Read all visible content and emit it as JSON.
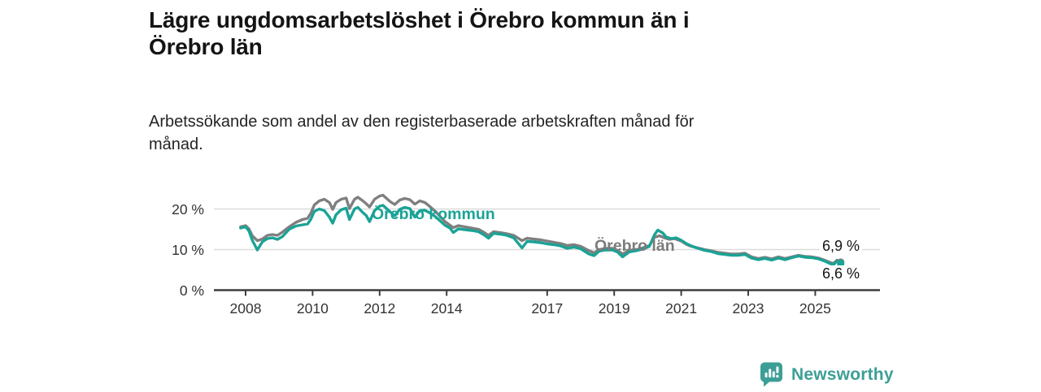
{
  "title": {
    "line1": "Lägre ungdomsarbetslöshet i Örebro kommun än i",
    "line2": "Örebro län"
  },
  "subtitle": {
    "line1": "Arbetssökande som andel av den registerbaserade arbetskraften månad för",
    "line2": "månad."
  },
  "chart_data": {
    "type": "line",
    "title": "Lägre ungdomsarbetslöshet i Örebro kommun än i Örebro län",
    "subtitle": "Arbetssökande som andel av den registerbaserade arbetskraften månad för månad.",
    "xlabel": "",
    "ylabel": "",
    "x_unit": "year (monthly data)",
    "y_unit": "percent",
    "xlim": [
      2007.7,
      2026.1
    ],
    "ylim": [
      0,
      25
    ],
    "grid": "horizontal",
    "legend_position": "inline-labels",
    "x_ticks": [
      2008,
      2010,
      2012,
      2014,
      2017,
      2019,
      2021,
      2023,
      2025
    ],
    "y_ticks": [
      {
        "value": 20,
        "label": "20 %"
      },
      {
        "value": 10,
        "label": "10 %"
      },
      {
        "value": 0,
        "label": "0 %"
      }
    ],
    "colors": {
      "kommun_teal": "#1aa396",
      "lan_gray": "#7f7f7f",
      "axis": "#3d3d3d",
      "gridline": "#dcdcdc",
      "tick_text": "#333333"
    },
    "series": [
      {
        "name": "Örebro län",
        "color": "#7f7f7f",
        "end_label": "6,9 %",
        "points": [
          [
            2007.85,
            15.6
          ],
          [
            2008.0,
            15.9
          ],
          [
            2008.1,
            15.1
          ],
          [
            2008.2,
            13.4
          ],
          [
            2008.35,
            12.2
          ],
          [
            2008.5,
            12.6
          ],
          [
            2008.65,
            13.5
          ],
          [
            2008.8,
            13.7
          ],
          [
            2008.95,
            13.5
          ],
          [
            2009.1,
            14.3
          ],
          [
            2009.3,
            15.6
          ],
          [
            2009.5,
            16.7
          ],
          [
            2009.7,
            17.4
          ],
          [
            2009.85,
            17.7
          ],
          [
            2009.95,
            19.0
          ],
          [
            2010.05,
            21.0
          ],
          [
            2010.2,
            22.0
          ],
          [
            2010.35,
            22.4
          ],
          [
            2010.5,
            21.6
          ],
          [
            2010.6,
            19.9
          ],
          [
            2010.7,
            21.6
          ],
          [
            2010.85,
            22.4
          ],
          [
            2011.0,
            22.7
          ],
          [
            2011.1,
            20.1
          ],
          [
            2011.25,
            22.4
          ],
          [
            2011.35,
            22.9
          ],
          [
            2011.5,
            22.0
          ],
          [
            2011.6,
            21.3
          ],
          [
            2011.7,
            20.5
          ],
          [
            2011.85,
            22.4
          ],
          [
            2012.0,
            23.2
          ],
          [
            2012.1,
            23.4
          ],
          [
            2012.3,
            21.9
          ],
          [
            2012.45,
            21.1
          ],
          [
            2012.6,
            22.2
          ],
          [
            2012.75,
            22.6
          ],
          [
            2012.9,
            22.3
          ],
          [
            2013.05,
            21.2
          ],
          [
            2013.2,
            22.0
          ],
          [
            2013.35,
            21.6
          ],
          [
            2013.5,
            20.6
          ],
          [
            2013.65,
            19.5
          ],
          [
            2013.8,
            18.2
          ],
          [
            2013.95,
            16.9
          ],
          [
            2014.1,
            16.0
          ],
          [
            2014.2,
            15.4
          ],
          [
            2014.35,
            15.9
          ],
          [
            2014.55,
            15.6
          ],
          [
            2014.75,
            15.3
          ],
          [
            2014.95,
            15.0
          ],
          [
            2015.1,
            14.3
          ],
          [
            2015.25,
            13.5
          ],
          [
            2015.4,
            14.4
          ],
          [
            2015.6,
            14.2
          ],
          [
            2015.8,
            13.9
          ],
          [
            2016.0,
            13.5
          ],
          [
            2016.25,
            12.2
          ],
          [
            2016.4,
            12.8
          ],
          [
            2016.6,
            12.6
          ],
          [
            2016.8,
            12.4
          ],
          [
            2017.0,
            12.1
          ],
          [
            2017.2,
            11.8
          ],
          [
            2017.4,
            11.5
          ],
          [
            2017.6,
            11.0
          ],
          [
            2017.8,
            11.2
          ],
          [
            2018.0,
            10.8
          ],
          [
            2018.25,
            9.7
          ],
          [
            2018.4,
            9.2
          ],
          [
            2018.55,
            10.0
          ],
          [
            2018.75,
            10.3
          ],
          [
            2018.95,
            10.3
          ],
          [
            2019.1,
            9.8
          ],
          [
            2019.25,
            8.9
          ],
          [
            2019.45,
            9.8
          ],
          [
            2019.65,
            10.0
          ],
          [
            2019.85,
            10.4
          ],
          [
            2020.05,
            11.0
          ],
          [
            2020.2,
            13.0
          ],
          [
            2020.35,
            13.4
          ],
          [
            2020.5,
            12.9
          ],
          [
            2020.65,
            12.5
          ],
          [
            2020.8,
            12.7
          ],
          [
            2021.0,
            12.1
          ],
          [
            2021.15,
            11.3
          ],
          [
            2021.3,
            10.8
          ],
          [
            2021.5,
            10.4
          ],
          [
            2021.7,
            10.0
          ],
          [
            2021.9,
            9.7
          ],
          [
            2022.1,
            9.3
          ],
          [
            2022.3,
            9.1
          ],
          [
            2022.5,
            8.9
          ],
          [
            2022.7,
            8.9
          ],
          [
            2022.9,
            9.1
          ],
          [
            2023.1,
            8.2
          ],
          [
            2023.3,
            7.8
          ],
          [
            2023.5,
            8.1
          ],
          [
            2023.7,
            7.7
          ],
          [
            2023.9,
            8.2
          ],
          [
            2024.1,
            7.8
          ],
          [
            2024.3,
            8.2
          ],
          [
            2024.5,
            8.6
          ],
          [
            2024.7,
            8.3
          ],
          [
            2024.9,
            8.2
          ],
          [
            2025.1,
            7.9
          ],
          [
            2025.3,
            7.3
          ],
          [
            2025.45,
            6.8
          ],
          [
            2025.55,
            6.6
          ],
          [
            2025.65,
            7.4
          ],
          [
            2025.76,
            6.9
          ]
        ]
      },
      {
        "name": "Örebro kommun",
        "color": "#1aa396",
        "end_label": "6,6 %",
        "points": [
          [
            2007.85,
            15.3
          ],
          [
            2008.0,
            15.6
          ],
          [
            2008.1,
            14.6
          ],
          [
            2008.2,
            12.3
          ],
          [
            2008.35,
            9.9
          ],
          [
            2008.5,
            11.9
          ],
          [
            2008.65,
            12.7
          ],
          [
            2008.8,
            12.9
          ],
          [
            2008.95,
            12.5
          ],
          [
            2009.1,
            13.2
          ],
          [
            2009.3,
            15.0
          ],
          [
            2009.5,
            15.8
          ],
          [
            2009.7,
            16.1
          ],
          [
            2009.85,
            16.3
          ],
          [
            2009.95,
            17.5
          ],
          [
            2010.05,
            19.4
          ],
          [
            2010.2,
            20.0
          ],
          [
            2010.35,
            19.6
          ],
          [
            2010.5,
            18.0
          ],
          [
            2010.6,
            16.5
          ],
          [
            2010.7,
            18.6
          ],
          [
            2010.85,
            19.8
          ],
          [
            2011.0,
            20.2
          ],
          [
            2011.1,
            17.4
          ],
          [
            2011.25,
            20.0
          ],
          [
            2011.35,
            20.4
          ],
          [
            2011.5,
            19.1
          ],
          [
            2011.6,
            18.4
          ],
          [
            2011.7,
            16.9
          ],
          [
            2011.85,
            19.6
          ],
          [
            2012.0,
            20.7
          ],
          [
            2012.1,
            20.9
          ],
          [
            2012.3,
            19.4
          ],
          [
            2012.45,
            18.3
          ],
          [
            2012.6,
            19.9
          ],
          [
            2012.75,
            20.4
          ],
          [
            2012.9,
            20.1
          ],
          [
            2013.05,
            18.0
          ],
          [
            2013.2,
            19.6
          ],
          [
            2013.35,
            19.7
          ],
          [
            2013.5,
            19.0
          ],
          [
            2013.65,
            18.2
          ],
          [
            2013.8,
            17.1
          ],
          [
            2013.95,
            16.0
          ],
          [
            2014.1,
            15.3
          ],
          [
            2014.2,
            14.2
          ],
          [
            2014.35,
            15.1
          ],
          [
            2014.55,
            14.9
          ],
          [
            2014.75,
            14.7
          ],
          [
            2014.95,
            14.4
          ],
          [
            2015.1,
            13.7
          ],
          [
            2015.25,
            12.8
          ],
          [
            2015.4,
            14.0
          ],
          [
            2015.6,
            13.8
          ],
          [
            2015.8,
            13.5
          ],
          [
            2016.0,
            12.9
          ],
          [
            2016.25,
            10.4
          ],
          [
            2016.4,
            12.0
          ],
          [
            2016.6,
            11.9
          ],
          [
            2016.8,
            11.7
          ],
          [
            2017.0,
            11.4
          ],
          [
            2017.2,
            11.2
          ],
          [
            2017.4,
            10.9
          ],
          [
            2017.6,
            10.3
          ],
          [
            2017.8,
            10.6
          ],
          [
            2018.0,
            10.2
          ],
          [
            2018.25,
            8.9
          ],
          [
            2018.4,
            8.5
          ],
          [
            2018.55,
            9.6
          ],
          [
            2018.75,
            9.9
          ],
          [
            2018.95,
            9.9
          ],
          [
            2019.1,
            9.4
          ],
          [
            2019.25,
            8.2
          ],
          [
            2019.45,
            9.4
          ],
          [
            2019.65,
            9.7
          ],
          [
            2019.85,
            10.1
          ],
          [
            2020.05,
            10.8
          ],
          [
            2020.2,
            13.6
          ],
          [
            2020.3,
            14.8
          ],
          [
            2020.45,
            14.1
          ],
          [
            2020.55,
            13.1
          ],
          [
            2020.7,
            12.7
          ],
          [
            2020.85,
            12.9
          ],
          [
            2021.0,
            12.3
          ],
          [
            2021.15,
            11.5
          ],
          [
            2021.3,
            10.9
          ],
          [
            2021.5,
            10.3
          ],
          [
            2021.7,
            9.8
          ],
          [
            2021.9,
            9.5
          ],
          [
            2022.1,
            9.0
          ],
          [
            2022.3,
            8.8
          ],
          [
            2022.5,
            8.6
          ],
          [
            2022.7,
            8.6
          ],
          [
            2022.9,
            8.8
          ],
          [
            2023.1,
            7.9
          ],
          [
            2023.3,
            7.5
          ],
          [
            2023.5,
            7.8
          ],
          [
            2023.7,
            7.4
          ],
          [
            2023.9,
            7.9
          ],
          [
            2024.1,
            7.5
          ],
          [
            2024.3,
            8.0
          ],
          [
            2024.5,
            8.4
          ],
          [
            2024.7,
            8.1
          ],
          [
            2024.9,
            8.0
          ],
          [
            2025.1,
            7.7
          ],
          [
            2025.3,
            7.1
          ],
          [
            2025.45,
            6.5
          ],
          [
            2025.55,
            6.3
          ],
          [
            2025.65,
            7.2
          ],
          [
            2025.76,
            6.6
          ]
        ]
      }
    ]
  },
  "branding": {
    "logo_text": "Newsworthy",
    "logo_color": "#3d9e96"
  }
}
